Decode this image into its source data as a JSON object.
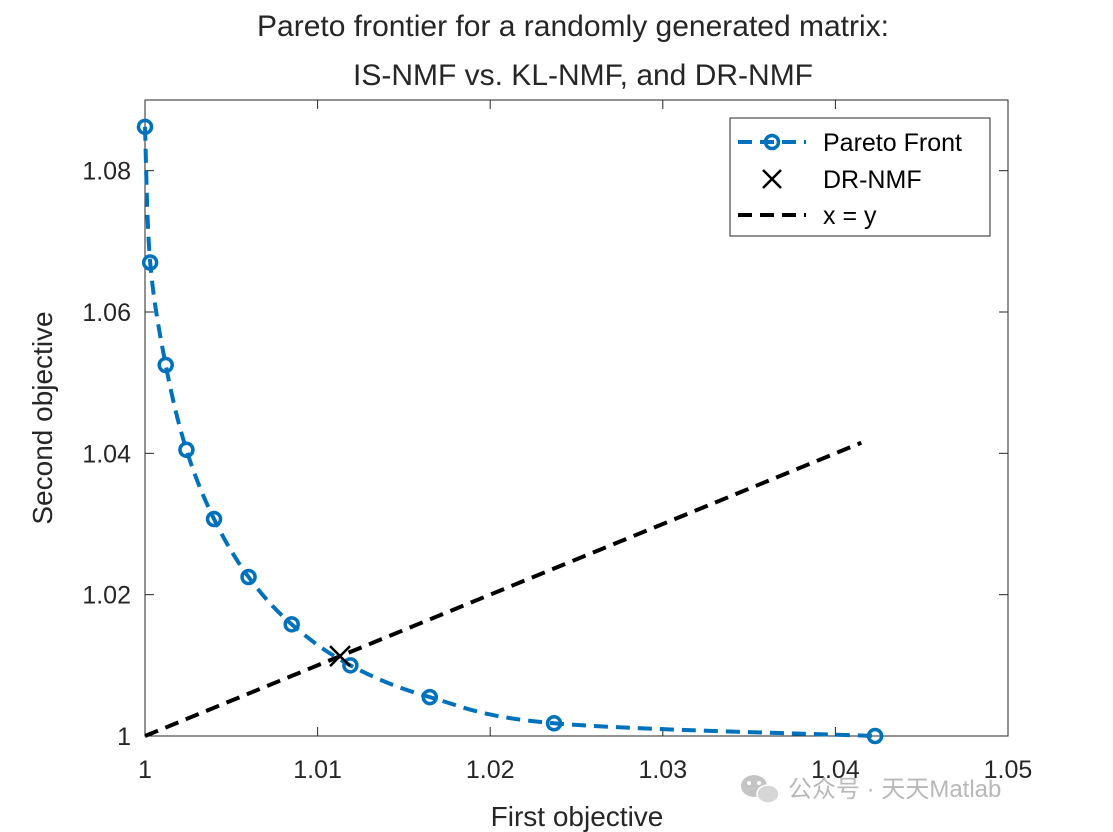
{
  "chart_data": {
    "type": "line",
    "title": [
      "Pareto frontier for a randomly generated matrix:",
      "IS-NMF vs. KL-NMF, and DR-NMF"
    ],
    "xlabel": "First objective",
    "ylabel": "Second objective",
    "xlim": [
      1,
      1.05
    ],
    "ylim": [
      1,
      1.09
    ],
    "xticks": [
      1,
      1.01,
      1.02,
      1.03,
      1.04,
      1.05
    ],
    "xtick_labels": [
      "1",
      "1.01",
      "1.02",
      "1.03",
      "1.04",
      "1.05"
    ],
    "yticks": [
      1,
      1.02,
      1.04,
      1.06,
      1.08
    ],
    "ytick_labels": [
      "1",
      "1.02",
      "1.04",
      "1.06",
      "1.08"
    ],
    "grid": false,
    "legend_position": "top-right",
    "series": [
      {
        "name": "Pareto Front",
        "style": "dashed-line-with-circle-markers",
        "color": "#0072BD",
        "x": [
          1.0,
          1.0003,
          1.0012,
          1.0024,
          1.004,
          1.006,
          1.0085,
          1.0119,
          1.0165,
          1.0237,
          1.0423
        ],
        "y": [
          1.0862,
          1.067,
          1.0525,
          1.0405,
          1.0307,
          1.0225,
          1.0158,
          1.01,
          1.0055,
          1.0018,
          1.0
        ]
      },
      {
        "name": "DR-NMF",
        "style": "x-marker",
        "color": "#000000",
        "x": [
          1.0113
        ],
        "y": [
          1.0113
        ]
      },
      {
        "name": "x = y",
        "style": "dashed-line",
        "color": "#000000",
        "x": [
          1.0,
          1.0415
        ],
        "y": [
          1.0,
          1.0415
        ]
      }
    ]
  },
  "watermark": {
    "text": "公众号 · 天天Matlab",
    "icon": "wechat-icon"
  }
}
